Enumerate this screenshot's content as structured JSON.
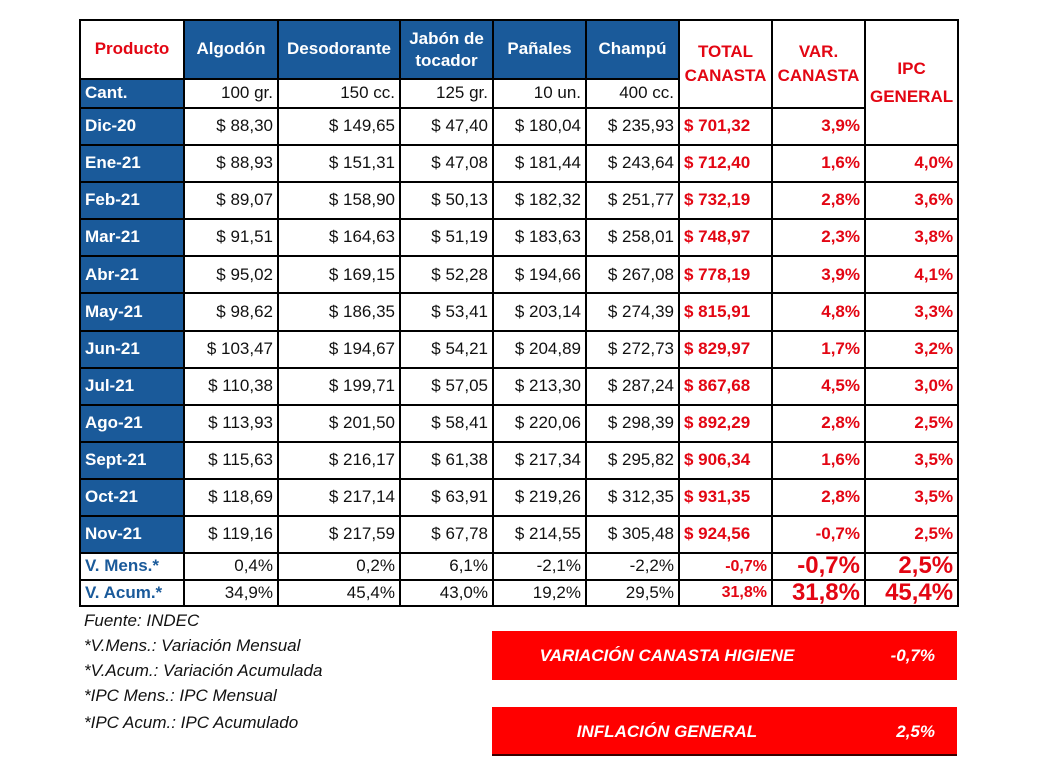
{
  "table": {
    "header": {
      "product_label": "Producto",
      "products": [
        "Algodón",
        "Desodorante",
        "Jabón de tocador",
        "Pañales",
        "Champú"
      ],
      "total_canasta": "TOTAL CANASTA",
      "var_canasta": "VAR. CANASTA",
      "ipc_general": "IPC GENERAL"
    },
    "quantity_row": {
      "label": "Cant.",
      "values": [
        "100 gr.",
        "150 cc.",
        "125 gr.",
        "10 un.",
        "400 cc."
      ]
    },
    "rows": [
      {
        "month": "Dic-20",
        "prices": [
          "$ 88,30",
          "$ 149,65",
          "$ 47,40",
          "$ 180,04",
          "$ 235,93"
        ],
        "total": "$ 701,32",
        "var": "3,9%",
        "ipc": ""
      },
      {
        "month": "Ene-21",
        "prices": [
          "$ 88,93",
          "$ 151,31",
          "$ 47,08",
          "$ 181,44",
          "$ 243,64"
        ],
        "total": "$ 712,40",
        "var": "1,6%",
        "ipc": "4,0%"
      },
      {
        "month": "Feb-21",
        "prices": [
          "$ 89,07",
          "$ 158,90",
          "$ 50,13",
          "$ 182,32",
          "$ 251,77"
        ],
        "total": "$ 732,19",
        "var": "2,8%",
        "ipc": "3,6%"
      },
      {
        "month": "Mar-21",
        "prices": [
          "$ 91,51",
          "$ 164,63",
          "$ 51,19",
          "$ 183,63",
          "$ 258,01"
        ],
        "total": "$ 748,97",
        "var": "2,3%",
        "ipc": "3,8%"
      },
      {
        "month": "Abr-21",
        "prices": [
          "$ 95,02",
          "$ 169,15",
          "$ 52,28",
          "$ 194,66",
          "$ 267,08"
        ],
        "total": "$ 778,19",
        "var": "3,9%",
        "ipc": "4,1%"
      },
      {
        "month": "May-21",
        "prices": [
          "$ 98,62",
          "$ 186,35",
          "$ 53,41",
          "$ 203,14",
          "$ 274,39"
        ],
        "total": "$ 815,91",
        "var": "4,8%",
        "ipc": "3,3%"
      },
      {
        "month": "Jun-21",
        "prices": [
          "$ 103,47",
          "$ 194,67",
          "$ 54,21",
          "$ 204,89",
          "$ 272,73"
        ],
        "total": "$ 829,97",
        "var": "1,7%",
        "ipc": "3,2%"
      },
      {
        "month": "Jul-21",
        "prices": [
          "$ 110,38",
          "$ 199,71",
          "$ 57,05",
          "$ 213,30",
          "$ 287,24"
        ],
        "total": "$ 867,68",
        "var": "4,5%",
        "ipc": "3,0%"
      },
      {
        "month": "Ago-21",
        "prices": [
          "$ 113,93",
          "$ 201,50",
          "$ 58,41",
          "$ 220,06",
          "$ 298,39"
        ],
        "total": "$ 892,29",
        "var": "2,8%",
        "ipc": "2,5%"
      },
      {
        "month": "Sept-21",
        "prices": [
          "$ 115,63",
          "$ 216,17",
          "$ 61,38",
          "$ 217,34",
          "$ 295,82"
        ],
        "total": "$ 906,34",
        "var": "1,6%",
        "ipc": "3,5%"
      },
      {
        "month": "Oct-21",
        "prices": [
          "$ 118,69",
          "$ 217,14",
          "$ 63,91",
          "$ 219,26",
          "$ 312,35"
        ],
        "total": "$ 931,35",
        "var": "2,8%",
        "ipc": "3,5%"
      },
      {
        "month": "Nov-21",
        "prices": [
          "$ 119,16",
          "$ 217,59",
          "$ 67,78",
          "$ 214,55",
          "$ 305,48"
        ],
        "total": "$ 924,56",
        "var": "-0,7%",
        "ipc": "2,5%"
      }
    ],
    "summary": [
      {
        "label": "V. Mens.*",
        "values": [
          "0,4%",
          "0,2%",
          "6,1%",
          "-2,1%",
          "-2,2%"
        ],
        "total": "-0,7%",
        "var": "-0,7%",
        "ipc": "2,5%"
      },
      {
        "label": "V. Acum.*",
        "values": [
          "34,9%",
          "45,4%",
          "43,0%",
          "19,2%",
          "29,5%"
        ],
        "total": "31,8%",
        "var": "31,8%",
        "ipc": "45,4%"
      }
    ]
  },
  "notes": [
    "Fuente: INDEC",
    "*V.Mens.: Variación Mensual",
    "*V.Acum.: Variación Acumulada",
    "*IPC Mens.: IPC Mensual",
    "*IPC Acum.: IPC Acumulado"
  ],
  "banners": [
    {
      "label": "VARIACIÓN CANASTA HIGIENE",
      "value": "-0,7%"
    },
    {
      "label": "INFLACIÓN GENERAL",
      "value": "2,5%"
    }
  ],
  "colors": {
    "header_blue": "#1A5A9A",
    "accent_red": "#E30613",
    "banner_red": "#FF0000"
  }
}
